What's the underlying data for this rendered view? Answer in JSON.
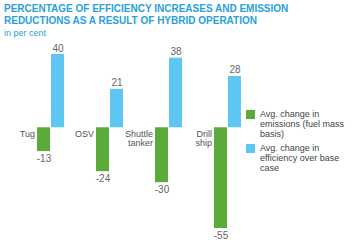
{
  "chart_data": {
    "type": "bar",
    "title": "PERCENTAGE OF EFFICIENCY INCREASES AND EMISSION REDUCTIONS AS A RESULT OF HYBRID OPERATION",
    "subtitle": "in per cent",
    "categories": [
      "Tug",
      "OSV",
      "Shuttle tanker",
      "Drill ship"
    ],
    "series": [
      {
        "name": "Avg. change in emissions (fuel mass basis)",
        "color": "#5aab3a",
        "values": [
          -13,
          -24,
          -30,
          -55
        ]
      },
      {
        "name": "Avg. change in efficiency over base case",
        "color": "#5ec6f2",
        "values": [
          40,
          21,
          38,
          28
        ]
      }
    ],
    "ylim": [
      -55,
      40
    ],
    "data_labels": true,
    "tick_labels": "x",
    "legend": "right",
    "grid": false
  }
}
